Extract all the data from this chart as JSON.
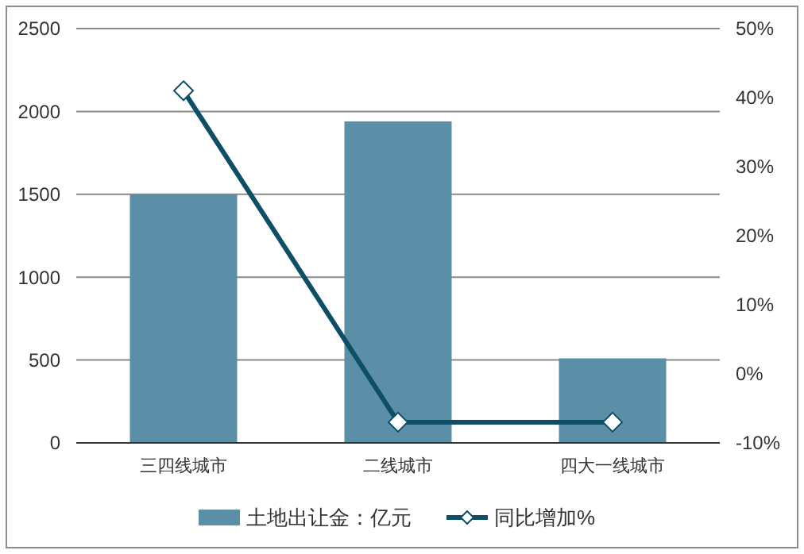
{
  "chart_data": {
    "type": "bar",
    "categories": [
      "三四线城市",
      "二线城市",
      "四大一线城市"
    ],
    "series": [
      {
        "name": "土地出让金：亿元",
        "color": "#5b8fa8",
        "values": [
          1500,
          1940,
          510
        ]
      },
      {
        "name": "同比增加%",
        "type": "line",
        "axis": "y2",
        "color": "#0e4f66",
        "marker": "diamond",
        "values": [
          41,
          -7,
          -7
        ]
      }
    ],
    "ylim": [
      0,
      2500
    ],
    "yticks": [
      0,
      500,
      1000,
      1500,
      2000,
      2500
    ],
    "y2lim": [
      -10,
      50
    ],
    "y2ticks": [
      {
        "value": -10,
        "label": "-10%"
      },
      {
        "value": 0,
        "label": "0%"
      },
      {
        "value": 10,
        "label": "10%"
      },
      {
        "value": 20,
        "label": "20%"
      },
      {
        "value": 30,
        "label": "30%"
      },
      {
        "value": 40,
        "label": "40%"
      },
      {
        "value": 50,
        "label": "50%"
      }
    ],
    "grid": "y",
    "legend": "bottom"
  }
}
